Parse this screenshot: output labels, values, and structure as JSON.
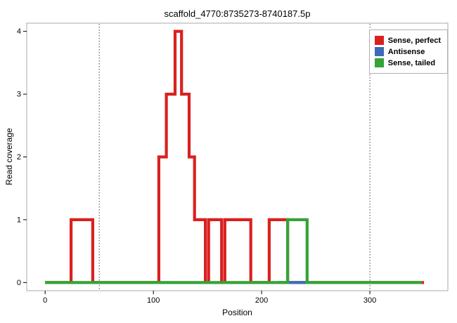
{
  "chart_data": {
    "type": "line",
    "title": "scaffold_4770:8735273-8740187.5p",
    "xlabel": "Position",
    "ylabel": "Read coverage",
    "xlim": [
      -17,
      372
    ],
    "ylim": [
      -0.13,
      4.13
    ],
    "x_ticks": [
      0,
      100,
      200,
      300
    ],
    "y_ticks": [
      0,
      1,
      2,
      3,
      4
    ],
    "reference_lines_x": [
      50,
      300
    ],
    "grid": false,
    "legend_position": "top-right",
    "line_width": 4.2,
    "series": [
      {
        "name": "Sense, perfect",
        "color": "#d92120",
        "points": [
          [
            0,
            0
          ],
          [
            24,
            0
          ],
          [
            24,
            1
          ],
          [
            44,
            1
          ],
          [
            44,
            0
          ],
          [
            105,
            0
          ],
          [
            105,
            2
          ],
          [
            112,
            2
          ],
          [
            112,
            3
          ],
          [
            120,
            3
          ],
          [
            120,
            4
          ],
          [
            126,
            4
          ],
          [
            126,
            3
          ],
          [
            133,
            3
          ],
          [
            133,
            2
          ],
          [
            138,
            2
          ],
          [
            138,
            1
          ],
          [
            148,
            1
          ],
          [
            148,
            0
          ],
          [
            151,
            0
          ],
          [
            151,
            1
          ],
          [
            163,
            1
          ],
          [
            163,
            0
          ],
          [
            166,
            0
          ],
          [
            166,
            1
          ],
          [
            190,
            1
          ],
          [
            190,
            0
          ],
          [
            207,
            0
          ],
          [
            207,
            1
          ],
          [
            224,
            1
          ],
          [
            224,
            0
          ],
          [
            350,
            0
          ]
        ]
      },
      {
        "name": "Antisense",
        "color": "#3c6cb4",
        "points": [
          [
            215,
            0
          ],
          [
            243,
            0
          ]
        ]
      },
      {
        "name": "Sense, tailed",
        "color": "#35a335",
        "points": [
          [
            0,
            0
          ],
          [
            224,
            0
          ],
          [
            224,
            1
          ],
          [
            242,
            1
          ],
          [
            242,
            0
          ],
          [
            348,
            0
          ]
        ]
      }
    ]
  }
}
